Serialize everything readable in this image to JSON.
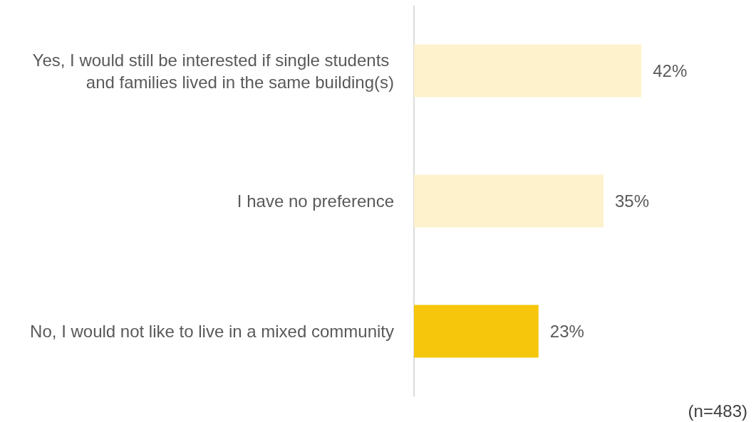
{
  "chart_data": {
    "type": "bar",
    "orientation": "horizontal",
    "categories": [
      "Yes, I would still be interested if single students and families lived in the same building(s)",
      "I have no preference",
      "No, I would not like to live in a mixed community"
    ],
    "values": [
      42,
      35,
      23
    ],
    "colors": [
      "#fdf2cc",
      "#fdf2cc",
      "#f6c60c"
    ],
    "value_labels": [
      "42%",
      "35%",
      "23%"
    ],
    "annotations": [
      "(n=483)"
    ],
    "grid": false
  }
}
